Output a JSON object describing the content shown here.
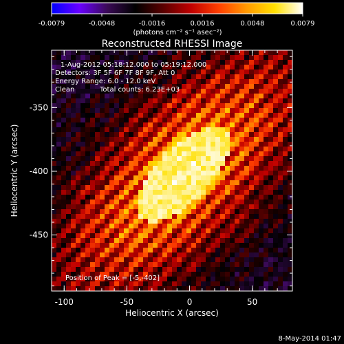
{
  "colorbar": {
    "tick_labels": [
      "-0.0079",
      "-0.0048",
      "-0.0016",
      "0.0016",
      "0.0048",
      "0.0079"
    ],
    "unit_label": "(photons cm⁻² s⁻¹ asec⁻²)",
    "min": -0.0079,
    "max": 0.0079,
    "colors": [
      "#0000ff",
      "#6a00ff",
      "#3a0a55",
      "#000000",
      "#5a0000",
      "#c00000",
      "#ff4000",
      "#ff9a00",
      "#ffe000",
      "#ffffff"
    ]
  },
  "plot": {
    "title": "Reconstructed RHESSI Image",
    "xlabel": "Heliocentric X (arcsec)",
    "ylabel": "Heliocentric Y (arcsec)",
    "x_ticks": [
      "-100",
      "-50",
      "0",
      "50"
    ],
    "x_tick_values": [
      -100,
      -50,
      0,
      50
    ],
    "y_ticks": [
      "-350",
      "-400",
      "-450"
    ],
    "y_tick_values": [
      -350,
      -400,
      -450
    ],
    "xlim": [
      -110,
      82
    ],
    "ylim": [
      -494,
      -305
    ],
    "peak": [
      -5,
      -402
    ]
  },
  "annotations": {
    "time_range": "1-Aug-2012 05:18:12.000 to 05:19:12.000",
    "detectors": "Detectors: 3F 5F 6F 7F 8F 9F, Att 0",
    "energy": "Energy Range: 6.0 - 12.0 keV",
    "method": "Clean",
    "counts": "Total counts: 6.23E+03",
    "peak_text": "Position of Peak = [-5,-402]"
  },
  "footer": {
    "timestamp": "8-May-2014 01:47"
  }
}
